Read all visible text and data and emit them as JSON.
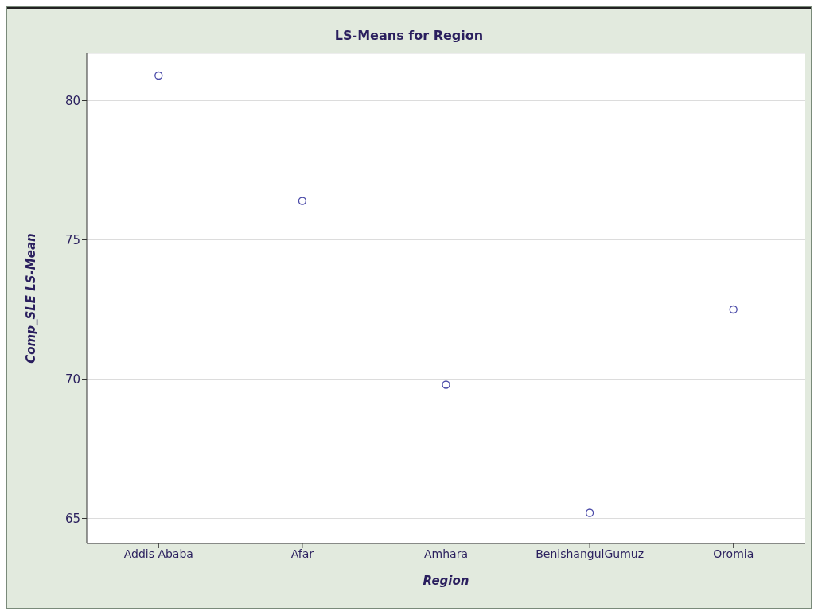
{
  "chart_data": {
    "type": "scatter",
    "title": "LS-Means for Region",
    "xlabel": "Region",
    "ylabel": "Comp_SLE LS-Mean",
    "categories": [
      "Addis Ababa",
      "Afar",
      "Amhara",
      "BenishangulGumuz",
      "Oromia"
    ],
    "series": [
      {
        "color": "#4a4aa8",
        "values": [
          80.9,
          76.4,
          69.8,
          65.2,
          72.5
        ]
      }
    ],
    "ylim": [
      64.1,
      81.7
    ],
    "yticks": [
      65,
      70,
      75,
      80
    ],
    "grid": "y",
    "marker": "circle"
  }
}
